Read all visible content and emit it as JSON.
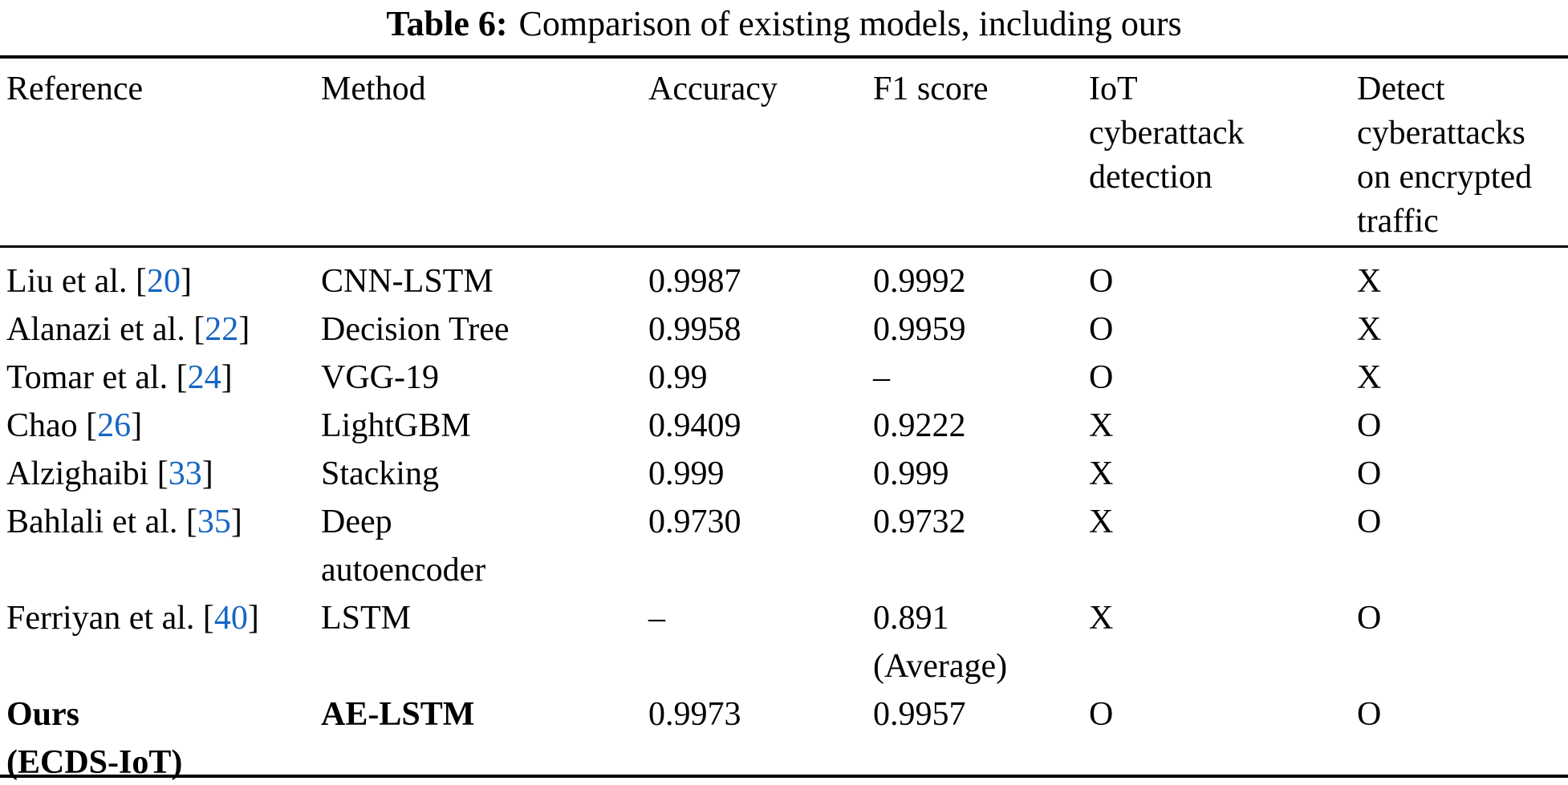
{
  "title": {
    "label": "Table 6:",
    "text": "Comparison of existing models, including ours"
  },
  "colors": {
    "citation_link": "#1666c4",
    "text": "#000000",
    "background": "#ffffff"
  },
  "table": {
    "columns": [
      {
        "label": "Reference"
      },
      {
        "label": "Method"
      },
      {
        "label": "Accuracy"
      },
      {
        "label": "F1 score"
      },
      {
        "label": "IoT\ncyberattack\ndetection"
      },
      {
        "label": "Detect\ncyberattacks\non encrypted\ntraffic"
      }
    ],
    "rows": [
      {
        "ref_pre": "Liu et al. [",
        "ref_num": "20",
        "ref_post": "]",
        "method": "CNN-LSTM",
        "accuracy": "0.9987",
        "f1": "0.9992",
        "iot": "O",
        "encrypted": "X"
      },
      {
        "ref_pre": "Alanazi et al. [",
        "ref_num": "22",
        "ref_post": "]",
        "method": "Decision Tree",
        "accuracy": "0.9958",
        "f1": "0.9959",
        "iot": "O",
        "encrypted": "X"
      },
      {
        "ref_pre": "Tomar et al. [",
        "ref_num": "24",
        "ref_post": "]",
        "method": "VGG-19",
        "accuracy": "0.99",
        "f1": "–",
        "iot": "O",
        "encrypted": "X"
      },
      {
        "ref_pre": "Chao [",
        "ref_num": "26",
        "ref_post": "]",
        "method": "LightGBM",
        "accuracy": "0.9409",
        "f1": "0.9222",
        "iot": "X",
        "encrypted": "O"
      },
      {
        "ref_pre": "Alzighaibi [",
        "ref_num": "33",
        "ref_post": "]",
        "method": "Stacking",
        "accuracy": "0.999",
        "f1": "0.999",
        "iot": "X",
        "encrypted": "O"
      },
      {
        "ref_pre": "Bahlali et al. [",
        "ref_num": "35",
        "ref_post": "]",
        "method": "Deep\nautoencoder",
        "accuracy": "0.9730",
        "f1": "0.9732",
        "iot": "X",
        "encrypted": "O"
      },
      {
        "ref_pre": "Ferriyan et al. [",
        "ref_num": "40",
        "ref_post": "]",
        "method": "LSTM",
        "accuracy": "–",
        "f1": "0.891\n(Average)",
        "iot": "X",
        "encrypted": "O"
      },
      {
        "ref_pre": "Ours\n(ECDS-IoT)",
        "ref_num": "",
        "ref_post": "",
        "method": "AE-LSTM",
        "accuracy": "0.9973",
        "f1": "0.9957",
        "iot": "O",
        "encrypted": "O"
      }
    ]
  }
}
